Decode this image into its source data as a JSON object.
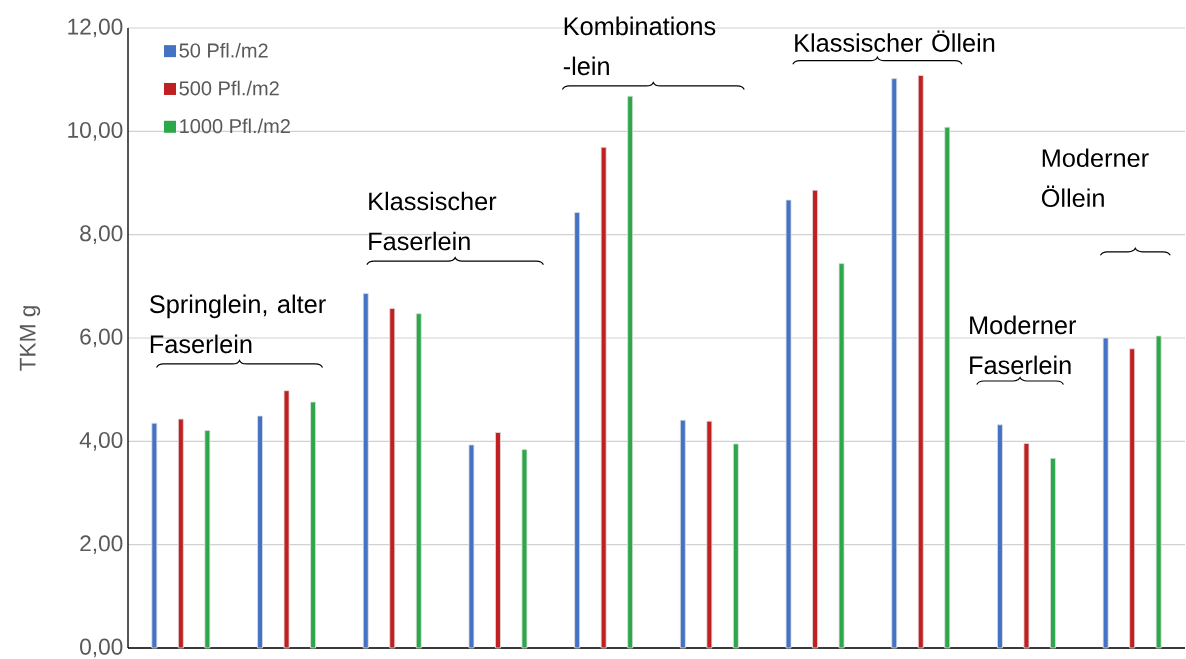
{
  "chart_data": {
    "type": "bar",
    "categories": [
      null,
      null,
      null,
      null,
      null,
      null,
      null,
      null,
      null,
      null
    ],
    "ylabel": "TKM g",
    "series": [
      {
        "name": "50 Pfl./m2",
        "color": "#4472c4",
        "values": [
          4.35,
          4.49,
          6.86,
          3.93,
          8.43,
          4.41,
          8.67,
          11.02,
          4.32,
          6.0
        ]
      },
      {
        "name": "500 Pfl./m2",
        "color": "#c0201f",
        "values": [
          4.43,
          4.98,
          6.57,
          4.17,
          9.69,
          4.39,
          8.86,
          11.08,
          3.96,
          5.79
        ]
      },
      {
        "name": "1000 Pfl./m2",
        "color": "#2ca84a",
        "values": [
          4.21,
          4.76,
          6.47,
          3.84,
          10.68,
          3.95,
          7.44,
          10.08,
          3.67,
          6.04
        ]
      }
    ],
    "ylim": [
      0,
      12
    ],
    "yticks": [
      {
        "value": 0,
        "label": "0,00"
      },
      {
        "value": 2,
        "label": "2,00"
      },
      {
        "value": 4,
        "label": "4,00"
      },
      {
        "value": 6,
        "label": "6,00"
      },
      {
        "value": 8,
        "label": "8,00"
      },
      {
        "value": 10,
        "label": "10,00"
      },
      {
        "value": 12,
        "label": "12,00"
      }
    ],
    "grid": "y",
    "legend": "top left",
    "annotations": [
      "Springlein, alter Faserlein",
      "Klassischer Faserlein",
      "Kombinations -lein",
      "Klassischer Öllein",
      "Moderner Faserlein",
      "Moderner Öllein"
    ]
  }
}
